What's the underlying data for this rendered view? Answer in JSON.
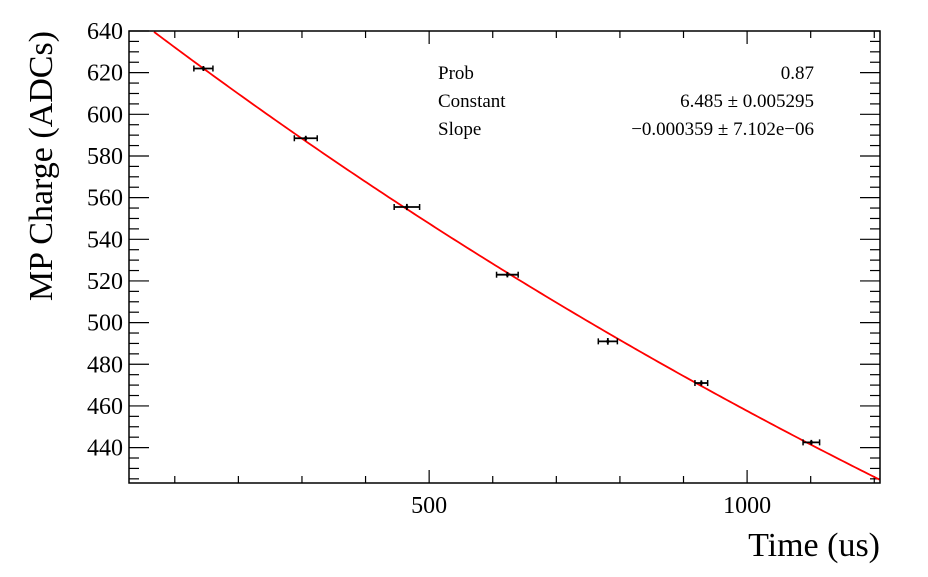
{
  "chart_data": {
    "type": "scatter",
    "title": "",
    "xlabel": "Time (us)",
    "ylabel": "MP Charge (ADCs)",
    "xlim": [
      28,
      1209
    ],
    "ylim": [
      423,
      640
    ],
    "xticks_major": [
      500,
      1000
    ],
    "xticks_minor_step": 100,
    "yticks_major": [
      440,
      460,
      480,
      500,
      520,
      540,
      560,
      580,
      600,
      620,
      640
    ],
    "yticks_minor_step": 5,
    "grid": false,
    "series": [
      {
        "type": "points_with_errors",
        "points": [
          {
            "x": 145,
            "y": 622,
            "xerr": 15,
            "yerr": 1.2
          },
          {
            "x": 306,
            "y": 588.5,
            "xerr": 18,
            "yerr": 1.2
          },
          {
            "x": 465,
            "y": 555.5,
            "xerr": 20,
            "yerr": 1.5
          },
          {
            "x": 623,
            "y": 523,
            "xerr": 17,
            "yerr": 1.3
          },
          {
            "x": 781,
            "y": 491,
            "xerr": 15,
            "yerr": 1.6
          },
          {
            "x": 928,
            "y": 471,
            "xerr": 10,
            "yerr": 1.3
          },
          {
            "x": 1101,
            "y": 442.5,
            "xerr": 13,
            "yerr": 1.2
          }
        ]
      },
      {
        "type": "fit_line",
        "color": "#ff0000",
        "function": "exp(Constant + Slope*x)",
        "constant": 6.485,
        "slope": -0.000359
      }
    ],
    "stats_box": {
      "rows": [
        {
          "label": "Prob",
          "value": "0.87"
        },
        {
          "label": "Constant",
          "value": "6.485 ± 0.005295"
        },
        {
          "label": "Slope",
          "value": "−0.000359 ± 7.102e−06"
        }
      ]
    }
  }
}
